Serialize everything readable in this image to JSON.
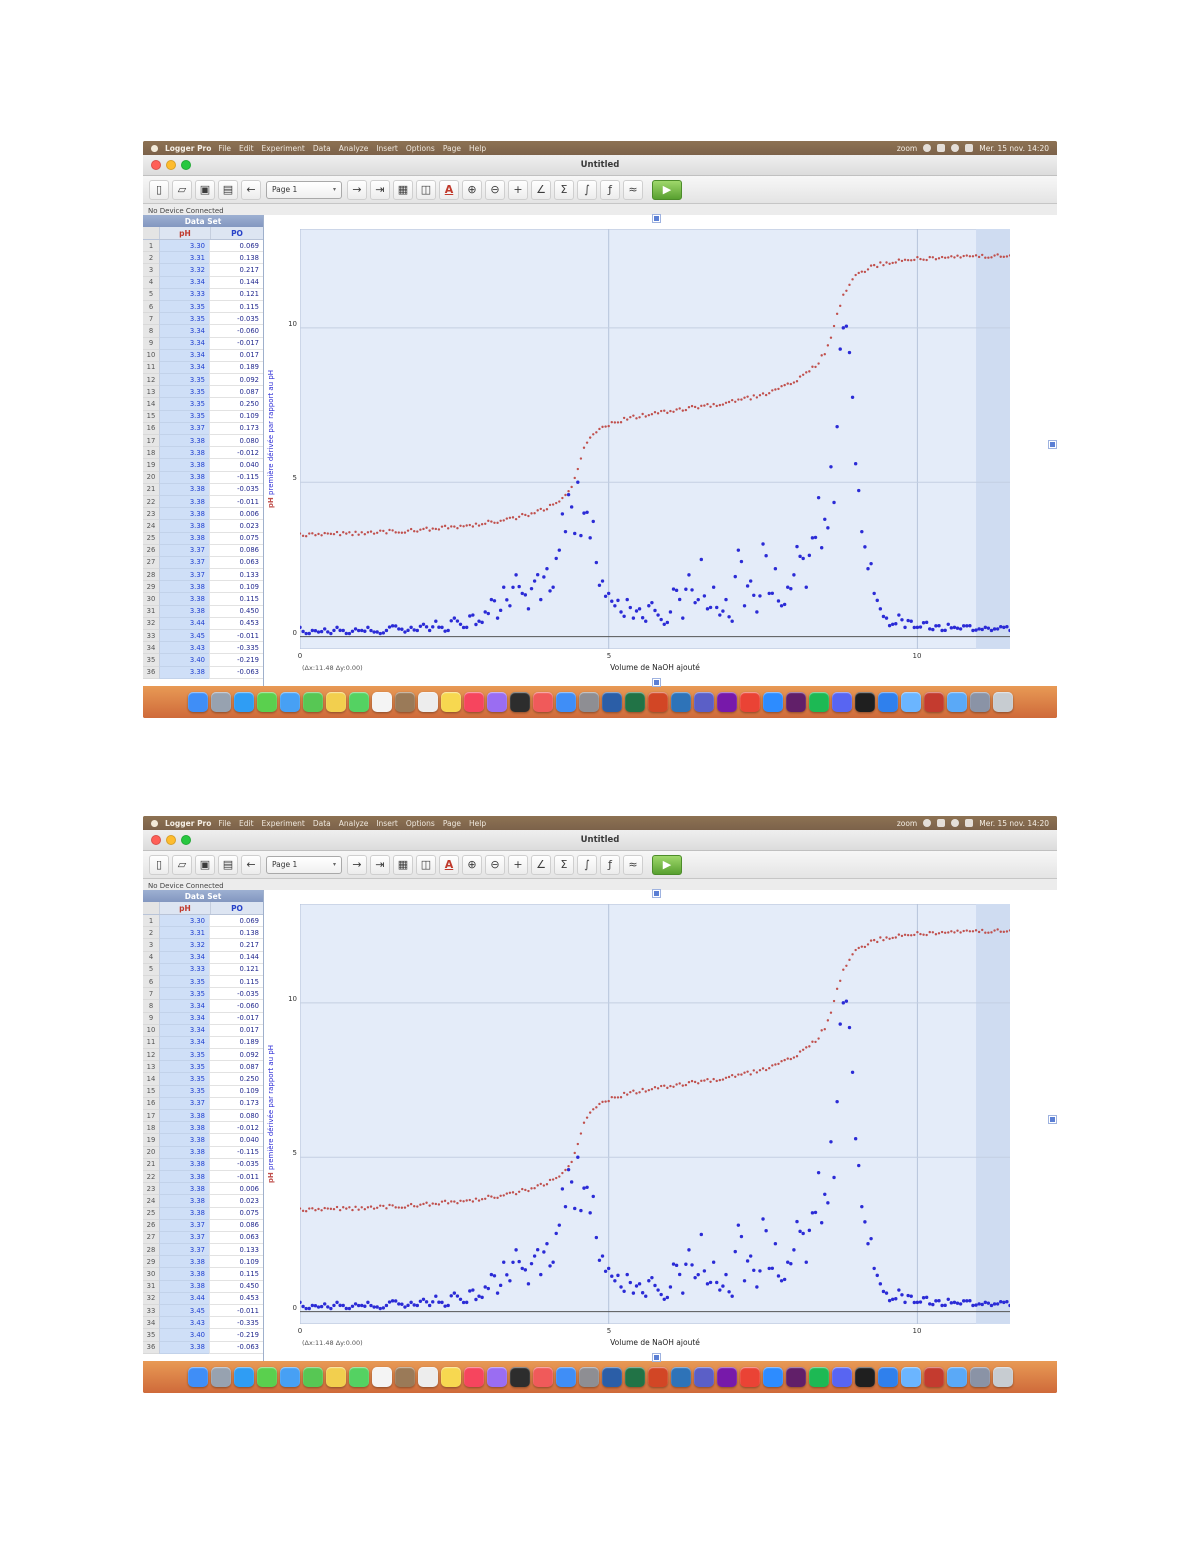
{
  "shot": {
    "menubar": {
      "app_name": "Logger Pro",
      "menus": [
        "File",
        "Edit",
        "Experiment",
        "Data",
        "Analyze",
        "Insert",
        "Options",
        "Page",
        "Help"
      ],
      "zoom_label": "zoom",
      "clock": "Mer. 15 nov. 14:20"
    },
    "window": {
      "title": "Untitled",
      "status_text": "No Device Connected"
    },
    "toolbar": {
      "page_label": "Page 1",
      "buttons": [
        {
          "name": "new-file-button",
          "glyph": "▯"
        },
        {
          "name": "open-file-button",
          "glyph": "▱"
        },
        {
          "name": "save-button",
          "glyph": "▣"
        },
        {
          "name": "print-button",
          "glyph": "▤"
        },
        {
          "name": "back-button",
          "glyph": "←"
        },
        {
          "name": "page-selector",
          "select": true,
          "label": "Page 1"
        },
        {
          "name": "forward-button",
          "glyph": "→"
        },
        {
          "name": "next-page-button",
          "glyph": "⇥"
        },
        {
          "name": "data-table-button",
          "glyph": "▦"
        },
        {
          "name": "graph-button",
          "glyph": "◫"
        },
        {
          "name": "text-annotation-button",
          "glyph": "A",
          "cls": "red"
        },
        {
          "name": "zoom-in-button",
          "glyph": "⊕"
        },
        {
          "name": "zoom-out-button",
          "glyph": "⊖"
        },
        {
          "name": "examine-button",
          "glyph": "+"
        },
        {
          "name": "tangent-button",
          "glyph": "∠"
        },
        {
          "name": "statistics-button",
          "glyph": "Σ"
        },
        {
          "name": "integral-button",
          "glyph": "∫"
        },
        {
          "name": "curve-fit-button",
          "glyph": "ƒ"
        },
        {
          "name": "interpolate-button",
          "glyph": "≈"
        },
        {
          "name": "collect-button",
          "glyph": "▶",
          "cls": "collect"
        }
      ]
    },
    "table": {
      "title": "Data Set",
      "col_ph": "pH",
      "col_po": "PO",
      "rows": [
        [
          "1",
          "3.30",
          "0.069"
        ],
        [
          "2",
          "3.31",
          "0.138"
        ],
        [
          "3",
          "3.32",
          "0.217"
        ],
        [
          "4",
          "3.34",
          "0.144"
        ],
        [
          "5",
          "3.33",
          "0.121"
        ],
        [
          "6",
          "3.35",
          "0.115"
        ],
        [
          "7",
          "3.35",
          "-0.035"
        ],
        [
          "8",
          "3.34",
          "-0.060"
        ],
        [
          "9",
          "3.34",
          "-0.017"
        ],
        [
          "10",
          "3.34",
          "0.017"
        ],
        [
          "11",
          "3.34",
          "0.189"
        ],
        [
          "12",
          "3.35",
          "0.092"
        ],
        [
          "13",
          "3.35",
          "0.087"
        ],
        [
          "14",
          "3.35",
          "0.250"
        ],
        [
          "15",
          "3.35",
          "0.109"
        ],
        [
          "16",
          "3.37",
          "0.173"
        ],
        [
          "17",
          "3.38",
          "0.080"
        ],
        [
          "18",
          "3.38",
          "-0.012"
        ],
        [
          "19",
          "3.38",
          "0.040"
        ],
        [
          "20",
          "3.38",
          "-0.115"
        ],
        [
          "21",
          "3.38",
          "-0.035"
        ],
        [
          "22",
          "3.38",
          "-0.011"
        ],
        [
          "23",
          "3.38",
          "0.006"
        ],
        [
          "24",
          "3.38",
          "0.023"
        ],
        [
          "25",
          "3.38",
          "0.075"
        ],
        [
          "26",
          "3.37",
          "0.086"
        ],
        [
          "27",
          "3.37",
          "0.063"
        ],
        [
          "28",
          "3.37",
          "0.133"
        ],
        [
          "29",
          "3.38",
          "0.109"
        ],
        [
          "30",
          "3.38",
          "0.115"
        ],
        [
          "31",
          "3.38",
          "0.450"
        ],
        [
          "32",
          "3.44",
          "0.453"
        ],
        [
          "33",
          "3.45",
          "-0.011"
        ],
        [
          "34",
          "3.43",
          "-0.335"
        ],
        [
          "35",
          "3.40",
          "-0.219"
        ],
        [
          "36",
          "3.38",
          "-0.063"
        ]
      ]
    },
    "chart_data": {
      "type": "scatter",
      "title": "",
      "xlabel": "Volume de NaOH ajouté",
      "ylabel_left_red": "pH",
      "ylabel_left_blue": "première dérivée par rapport au pH",
      "xlim": [
        0,
        11.5
      ],
      "ylim": [
        -0.4,
        13.2
      ],
      "xticks": [
        0,
        5,
        10
      ],
      "yticks": [
        0,
        5,
        10
      ],
      "x_step": 0.1,
      "grid": true,
      "legend": "none",
      "annotation": "(Δx:11.48  Δy:0.00)",
      "series": [
        {
          "name": "pH",
          "color": "#c0504d",
          "marker": "point",
          "values": [
            3.3,
            3.3,
            3.31,
            3.31,
            3.32,
            3.32,
            3.33,
            3.33,
            3.34,
            3.34,
            3.35,
            3.36,
            3.37,
            3.38,
            3.39,
            3.4,
            3.41,
            3.42,
            3.43,
            3.44,
            3.46,
            3.48,
            3.5,
            3.52,
            3.54,
            3.56,
            3.58,
            3.6,
            3.62,
            3.65,
            3.68,
            3.71,
            3.74,
            3.78,
            3.82,
            3.86,
            3.91,
            3.96,
            4.02,
            4.09,
            4.17,
            4.27,
            4.4,
            4.58,
            4.85,
            5.4,
            6.1,
            6.45,
            6.65,
            6.78,
            6.87,
            6.94,
            7.0,
            7.05,
            7.1,
            7.14,
            7.18,
            7.21,
            7.24,
            7.27,
            7.3,
            7.33,
            7.36,
            7.39,
            7.42,
            7.45,
            7.48,
            7.51,
            7.54,
            7.57,
            7.61,
            7.65,
            7.69,
            7.74,
            7.79,
            7.85,
            7.91,
            7.98,
            8.06,
            8.15,
            8.25,
            8.37,
            8.51,
            8.68,
            8.9,
            9.2,
            9.65,
            10.4,
            11.05,
            11.45,
            11.68,
            11.82,
            11.92,
            12.0,
            12.06,
            12.1,
            12.14,
            12.17,
            12.2,
            12.22,
            12.24,
            12.25,
            12.26,
            12.27,
            12.28,
            12.29,
            12.3,
            12.3,
            12.31,
            12.31,
            12.32,
            12.32,
            12.33,
            12.33,
            12.34,
            12.34
          ]
        },
        {
          "name": "première dérivée",
          "color": "#2b2bd6",
          "marker": "dot",
          "values": [
            0.3,
            0.1,
            0.2,
            0.15,
            0.25,
            0.1,
            0.3,
            0.2,
            0.1,
            0.25,
            0.2,
            0.3,
            0.15,
            0.1,
            0.2,
            0.35,
            0.25,
            0.15,
            0.3,
            0.2,
            0.4,
            0.2,
            0.5,
            0.3,
            0.2,
            0.6,
            0.4,
            0.3,
            0.7,
            0.5,
            0.8,
            1.2,
            0.6,
            1.6,
            1.0,
            2.0,
            1.4,
            0.9,
            1.8,
            1.2,
            2.2,
            1.6,
            2.8,
            3.4,
            4.2,
            5.0,
            4.0,
            3.2,
            2.4,
            1.8,
            1.4,
            1.0,
            0.8,
            1.2,
            0.6,
            0.9,
            0.5,
            1.1,
            0.7,
            0.4,
            0.8,
            1.5,
            0.6,
            2.0,
            1.1,
            2.5,
            0.9,
            1.6,
            0.7,
            1.2,
            0.5,
            2.8,
            1.0,
            1.8,
            0.8,
            3.0,
            1.4,
            2.2,
            1.0,
            1.6,
            2.0,
            2.6,
            1.6,
            3.2,
            4.5,
            3.8,
            5.5,
            6.8,
            10.0,
            9.2,
            5.6,
            3.4,
            2.2,
            1.4,
            0.9,
            0.6,
            0.4,
            0.7,
            0.3,
            0.5,
            0.3,
            0.45,
            0.25,
            0.35,
            0.2,
            0.4,
            0.3,
            0.25,
            0.35,
            0.2,
            0.25,
            0.3,
            0.2,
            0.25,
            0.3,
            0.2
          ]
        }
      ]
    }
  },
  "dock": {
    "icons": [
      {
        "name": "finder",
        "color": "#3f8ef7"
      },
      {
        "name": "launchpad",
        "color": "#97a2b0"
      },
      {
        "name": "safari",
        "color": "#2f9df4"
      },
      {
        "name": "messages",
        "color": "#5ad04e"
      },
      {
        "name": "mail",
        "color": "#47a0f4"
      },
      {
        "name": "maps",
        "color": "#57c754"
      },
      {
        "name": "photos",
        "color": "#f2cf4e"
      },
      {
        "name": "facetime",
        "color": "#54d262"
      },
      {
        "name": "calendar",
        "color": "#f4f4f4"
      },
      {
        "name": "contacts",
        "color": "#9a7a58"
      },
      {
        "name": "reminders",
        "color": "#ededed"
      },
      {
        "name": "notes",
        "color": "#f7d850"
      },
      {
        "name": "music",
        "color": "#f6455e"
      },
      {
        "name": "podcasts",
        "color": "#9a6df2"
      },
      {
        "name": "tv",
        "color": "#2d2d2d"
      },
      {
        "name": "news",
        "color": "#f05a5a"
      },
      {
        "name": "appstore",
        "color": "#3f8ef7"
      },
      {
        "name": "settings",
        "color": "#8e8e93"
      },
      {
        "name": "word",
        "color": "#2b5ea7"
      },
      {
        "name": "excel",
        "color": "#217346"
      },
      {
        "name": "powerpoint",
        "color": "#d24625"
      },
      {
        "name": "outlook",
        "color": "#2e73b8"
      },
      {
        "name": "teams",
        "color": "#5b5fc7"
      },
      {
        "name": "onenote",
        "color": "#7719aa"
      },
      {
        "name": "chrome",
        "color": "#ea4335"
      },
      {
        "name": "zoom-app",
        "color": "#2d8cff"
      },
      {
        "name": "slack",
        "color": "#611f69"
      },
      {
        "name": "spotify",
        "color": "#1db954"
      },
      {
        "name": "discord",
        "color": "#5865f2"
      },
      {
        "name": "terminal",
        "color": "#1f1f1f"
      },
      {
        "name": "vscode",
        "color": "#2f80ed"
      },
      {
        "name": "preview",
        "color": "#6bb5ff"
      },
      {
        "name": "logger-pro",
        "color": "#c43b2f"
      },
      {
        "name": "documents-folder",
        "color": "#5aa9f7"
      },
      {
        "name": "downloads-folder",
        "color": "#8a93a6"
      },
      {
        "name": "trash",
        "color": "#c7ccd1"
      }
    ]
  }
}
